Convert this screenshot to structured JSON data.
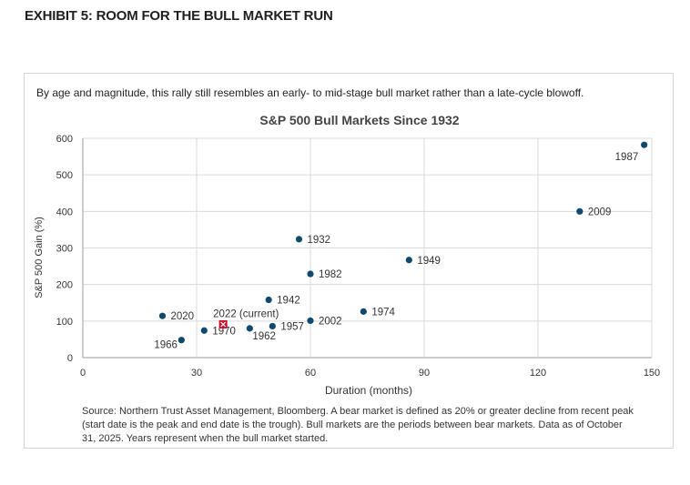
{
  "exhibit_title": "EXHIBIT 5: ROOM FOR THE BULL MARKET RUN",
  "subtitle": "By age and magnitude, this rally still resembles an early- to mid-stage bull market rather than a late-cycle blowoff.",
  "source_note": "Source: Northern Trust Asset Management, Bloomberg. A bear market is defined as 20% or greater decline from recent peak (start date is the peak and end date is the trough). Bull markets are the periods between bear markets. Data as of October 31, 2025. Years represent when the bull market started.",
  "chart_data": {
    "type": "scatter",
    "title": "S&P 500 Bull Markets Since 1932",
    "xlabel": "Duration (months)",
    "ylabel": "S&P 500 Gain (%)",
    "xlim": [
      0,
      150
    ],
    "ylim": [
      0,
      600
    ],
    "xticks": [
      0,
      30,
      60,
      90,
      120,
      150
    ],
    "yticks": [
      0,
      100,
      200,
      300,
      400,
      500,
      600
    ],
    "grid": true,
    "colors": {
      "point": "#0f4a6e",
      "current": "#c8102e",
      "grid": "#d9d9d9"
    },
    "points": [
      {
        "label": "1932",
        "x": 57,
        "y": 324
      },
      {
        "label": "1942",
        "x": 49,
        "y": 158
      },
      {
        "label": "1949",
        "x": 86,
        "y": 267
      },
      {
        "label": "1957",
        "x": 50,
        "y": 86
      },
      {
        "label": "1962",
        "x": 44,
        "y": 80
      },
      {
        "label": "1966",
        "x": 26,
        "y": 48
      },
      {
        "label": "1970",
        "x": 32,
        "y": 74
      },
      {
        "label": "1974",
        "x": 74,
        "y": 126
      },
      {
        "label": "1982",
        "x": 60,
        "y": 229
      },
      {
        "label": "1987",
        "x": 148,
        "y": 582
      },
      {
        "label": "2002",
        "x": 60,
        "y": 101
      },
      {
        "label": "2009",
        "x": 131,
        "y": 400
      },
      {
        "label": "2020",
        "x": 21,
        "y": 114
      }
    ],
    "current": {
      "label": "2022 (current)",
      "x": 37,
      "y": 91
    }
  }
}
